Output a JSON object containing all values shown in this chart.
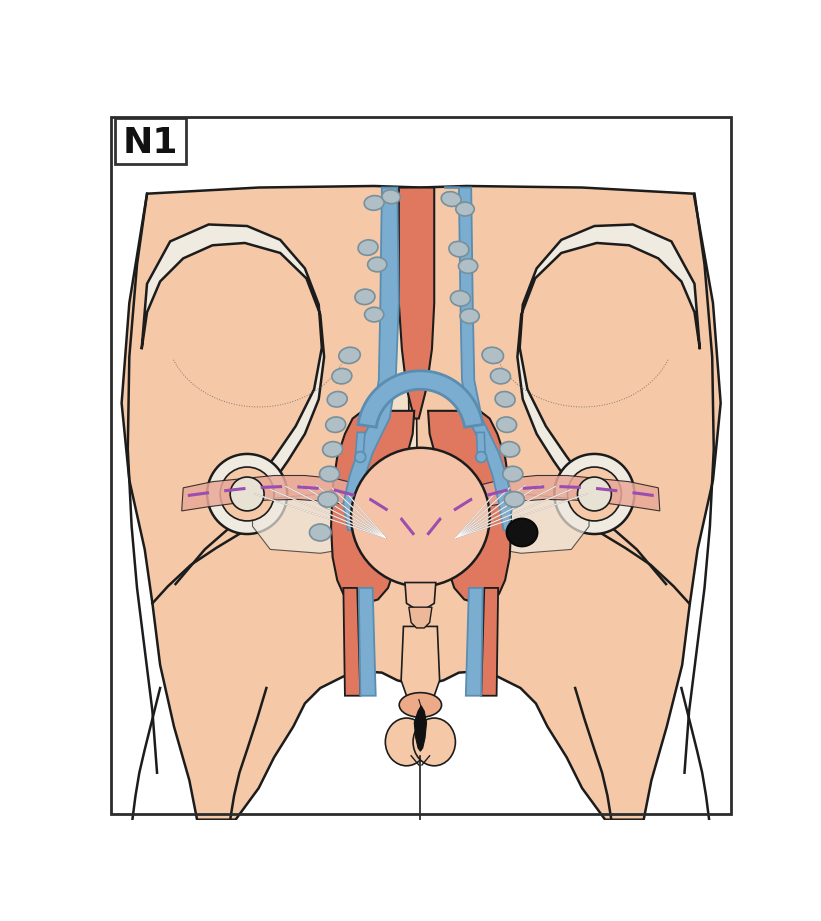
{
  "title": "N1",
  "skin_color": "#F5C9A8",
  "vessel_orange": "#E07860",
  "vessel_blue": "#7BADD0",
  "vessel_blue_edge": "#5A8DB0",
  "lymph_node_fill": "#B0BEC5",
  "lymph_node_edge": "#78909C",
  "bone_color": "#F0EBE0",
  "muscle_pink": "#E8A898",
  "dashed_purple": "#9B4DB0",
  "outline_color": "#1C1C1C",
  "white_color": "#FFFFFF",
  "light_peach": "#F8DBC8",
  "black_color": "#111111"
}
